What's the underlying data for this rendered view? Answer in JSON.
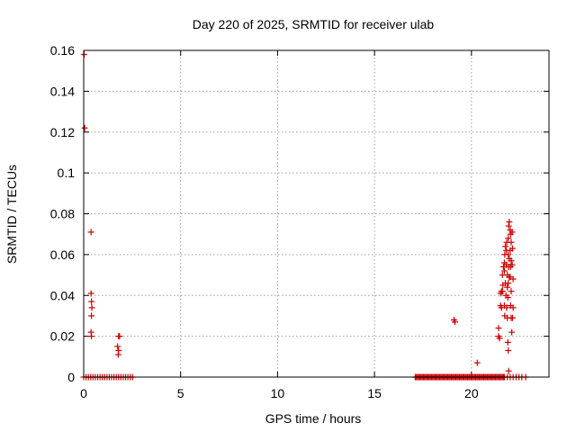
{
  "chart_data": {
    "type": "scatter",
    "title": "Day 220 of 2025, SRMTID for receiver ulab",
    "xlabel": "GPS time / hours",
    "ylabel": "SRMTID / TECUs",
    "xlim": [
      0,
      24
    ],
    "ylim": [
      0,
      0.16
    ],
    "xticks": [
      0,
      5,
      10,
      15,
      20
    ],
    "xtick_labels": [
      "0",
      "5",
      "10",
      "15",
      "20"
    ],
    "yticks": [
      0,
      0.02,
      0.04,
      0.06,
      0.08,
      0.1,
      0.12,
      0.14,
      0.16
    ],
    "ytick_labels": [
      "0",
      "0.02",
      "0.04",
      "0.06",
      "0.08",
      "0.1",
      "0.12",
      "0.14",
      "0.16"
    ],
    "grid": true,
    "marker": "+",
    "marker_color": "#cc0000",
    "series": [
      {
        "name": "SRMTID",
        "points": [
          [
            0.02,
            0.158
          ],
          [
            0.05,
            0.122
          ],
          [
            0.38,
            0.071
          ],
          [
            0.38,
            0.041
          ],
          [
            0.4,
            0.037
          ],
          [
            0.42,
            0.034
          ],
          [
            0.4,
            0.03
          ],
          [
            0.38,
            0.022
          ],
          [
            0.4,
            0.02
          ],
          [
            1.8,
            0.02
          ],
          [
            1.85,
            0.02
          ],
          [
            1.75,
            0.015
          ],
          [
            1.8,
            0.013
          ],
          [
            1.78,
            0.011
          ],
          [
            19.1,
            0.028
          ],
          [
            19.15,
            0.027
          ],
          [
            20.3,
            0.007
          ],
          [
            21.4,
            0.024
          ],
          [
            21.4,
            0.02
          ],
          [
            21.45,
            0.019
          ],
          [
            21.5,
            0.035
          ],
          [
            21.55,
            0.034
          ],
          [
            21.5,
            0.041
          ],
          [
            21.55,
            0.042
          ],
          [
            21.6,
            0.042
          ],
          [
            21.62,
            0.045
          ],
          [
            21.6,
            0.05
          ],
          [
            21.65,
            0.054
          ],
          [
            21.7,
            0.056
          ],
          [
            21.7,
            0.052
          ],
          [
            21.72,
            0.06
          ],
          [
            21.75,
            0.064
          ],
          [
            21.75,
            0.046
          ],
          [
            21.78,
            0.04
          ],
          [
            21.7,
            0.035
          ],
          [
            21.72,
            0.03
          ],
          [
            21.8,
            0.062
          ],
          [
            21.82,
            0.066
          ],
          [
            21.8,
            0.055
          ],
          [
            21.85,
            0.05
          ],
          [
            21.85,
            0.044
          ],
          [
            21.88,
            0.039
          ],
          [
            21.82,
            0.034
          ],
          [
            21.85,
            0.029
          ],
          [
            21.9,
            0.068
          ],
          [
            21.92,
            0.074
          ],
          [
            21.95,
            0.076
          ],
          [
            21.9,
            0.06
          ],
          [
            21.95,
            0.058
          ],
          [
            21.92,
            0.054
          ],
          [
            21.95,
            0.049
          ],
          [
            21.9,
            0.046
          ],
          [
            21.88,
            0.017
          ],
          [
            21.9,
            0.013
          ],
          [
            21.92,
            0.003
          ],
          [
            22.0,
            0.072
          ],
          [
            22.02,
            0.07
          ],
          [
            22.05,
            0.066
          ],
          [
            22.0,
            0.062
          ],
          [
            22.05,
            0.057
          ],
          [
            22.02,
            0.054
          ],
          [
            22.0,
            0.049
          ],
          [
            22.05,
            0.042
          ],
          [
            22.02,
            0.035
          ],
          [
            22.05,
            0.029
          ],
          [
            22.08,
            0.022
          ],
          [
            22.1,
            0.071
          ],
          [
            22.12,
            0.063
          ],
          [
            22.1,
            0.055
          ],
          [
            22.15,
            0.048
          ],
          [
            22.15,
            0.034
          ],
          [
            22.12,
            0.029
          ]
        ],
        "zero_runs": [
          [
            0.0,
            2.6,
            0.12
          ],
          [
            17.1,
            21.7,
            0.06
          ],
          [
            21.7,
            22.6,
            0.15
          ],
          [
            22.8,
            22.85,
            0.1
          ]
        ]
      }
    ]
  }
}
